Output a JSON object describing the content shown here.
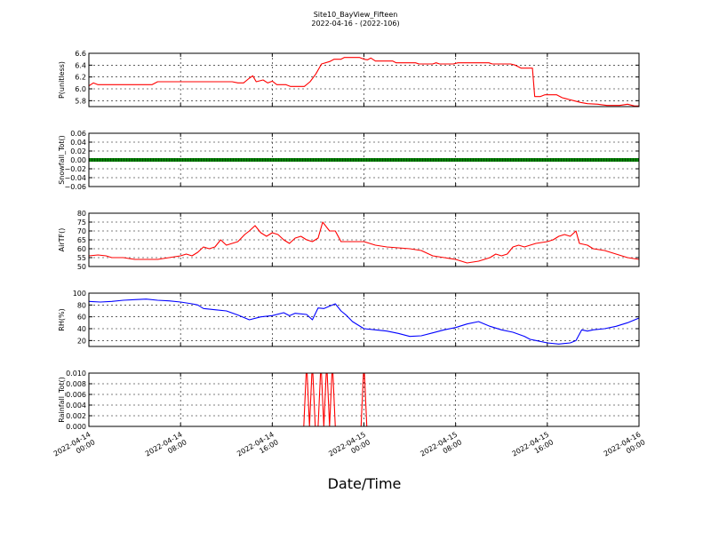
{
  "chart_data": {
    "type": "line",
    "title": "Site10_BayView_Fifteen",
    "subtitle": "2022-04-16 - (2022-106)",
    "xlabel": "Date/Time",
    "x_ticks": [
      {
        "line1": "2022-04-14",
        "line2": "00:00"
      },
      {
        "line1": "2022-04-14",
        "line2": "08:00"
      },
      {
        "line1": "2022-04-14",
        "line2": "16:00"
      },
      {
        "line1": "2022-04-15",
        "line2": "00:00"
      },
      {
        "line1": "2022-04-15",
        "line2": "08:00"
      },
      {
        "line1": "2022-04-15",
        "line2": "16:00"
      },
      {
        "line1": "2022-04-16",
        "line2": "00:00"
      }
    ],
    "x_range_hours": [
      0,
      48
    ],
    "grid": true,
    "panels": [
      {
        "ylabel": "P(unitless)",
        "color": "#ff0000",
        "ylim": [
          5.7,
          6.6
        ],
        "yticks": [
          "6.6",
          "6.4",
          "6.2",
          "6.0",
          "5.8"
        ],
        "ytick_values": [
          6.6,
          6.4,
          6.2,
          6.0,
          5.8
        ],
        "points": [
          [
            0,
            6.05
          ],
          [
            0.4,
            6.1
          ],
          [
            0.8,
            6.07
          ],
          [
            5.5,
            6.07
          ],
          [
            6.0,
            6.12
          ],
          [
            12.5,
            6.12
          ],
          [
            13.0,
            6.1
          ],
          [
            13.5,
            6.1
          ],
          [
            14.0,
            6.18
          ],
          [
            14.3,
            6.22
          ],
          [
            14.6,
            6.12
          ],
          [
            15.2,
            6.15
          ],
          [
            15.6,
            6.1
          ],
          [
            16.0,
            6.13
          ],
          [
            16.4,
            6.07
          ],
          [
            17.2,
            6.07
          ],
          [
            17.6,
            6.04
          ],
          [
            18.8,
            6.04
          ],
          [
            19.3,
            6.12
          ],
          [
            19.8,
            6.25
          ],
          [
            20.3,
            6.42
          ],
          [
            21.0,
            6.46
          ],
          [
            21.4,
            6.5
          ],
          [
            22.0,
            6.5
          ],
          [
            22.3,
            6.53
          ],
          [
            23.6,
            6.53
          ],
          [
            24.0,
            6.5
          ],
          [
            24.3,
            6.49
          ],
          [
            24.6,
            6.52
          ],
          [
            25.0,
            6.47
          ],
          [
            26.5,
            6.47
          ],
          [
            26.8,
            6.44
          ],
          [
            28.5,
            6.44
          ],
          [
            28.8,
            6.42
          ],
          [
            30.0,
            6.42
          ],
          [
            30.3,
            6.44
          ],
          [
            30.6,
            6.42
          ],
          [
            31.8,
            6.42
          ],
          [
            32.2,
            6.44
          ],
          [
            34.9,
            6.44
          ],
          [
            35.2,
            6.42
          ],
          [
            36.8,
            6.42
          ],
          [
            37.2,
            6.4
          ],
          [
            37.7,
            6.35
          ],
          [
            38.7,
            6.35
          ],
          [
            38.9,
            5.87
          ],
          [
            39.4,
            5.87
          ],
          [
            39.8,
            5.9
          ],
          [
            40.8,
            5.9
          ],
          [
            41.3,
            5.85
          ],
          [
            41.9,
            5.82
          ],
          [
            42.3,
            5.8
          ],
          [
            42.9,
            5.77
          ],
          [
            43.5,
            5.75
          ],
          [
            44.4,
            5.74
          ],
          [
            45.2,
            5.72
          ],
          [
            46.3,
            5.72
          ],
          [
            47.0,
            5.74
          ],
          [
            47.6,
            5.71
          ],
          [
            48.0,
            5.71
          ]
        ]
      },
      {
        "ylabel": "Snowfall_Tot()",
        "color": "#008000",
        "ylim": [
          -0.06,
          0.06
        ],
        "yticks": [
          "0.06",
          "0.04",
          "0.02",
          "0.00",
          "−0.02",
          "−0.04",
          "−0.06"
        ],
        "ytick_values": [
          0.06,
          0.04,
          0.02,
          0.0,
          -0.02,
          -0.04,
          -0.06
        ],
        "points": [
          [
            0,
            0
          ],
          [
            48,
            0
          ]
        ]
      },
      {
        "ylabel": "AirTF()",
        "color": "#ff0000",
        "ylim": [
          50,
          80
        ],
        "yticks": [
          "80",
          "75",
          "70",
          "65",
          "60",
          "55",
          "50"
        ],
        "ytick_values": [
          80,
          75,
          70,
          65,
          60,
          55,
          50
        ],
        "points": [
          [
            0,
            56
          ],
          [
            0.8,
            56.5
          ],
          [
            1.5,
            56
          ],
          [
            2,
            55
          ],
          [
            3,
            55
          ],
          [
            4,
            54
          ],
          [
            5,
            54
          ],
          [
            6,
            54
          ],
          [
            7,
            55
          ],
          [
            8,
            56
          ],
          [
            8.5,
            57
          ],
          [
            9,
            56
          ],
          [
            9.5,
            58
          ],
          [
            10,
            61
          ],
          [
            10.5,
            60
          ],
          [
            11,
            61
          ],
          [
            11.5,
            65
          ],
          [
            12,
            62
          ],
          [
            13,
            64
          ],
          [
            13.6,
            68
          ],
          [
            14,
            70
          ],
          [
            14.5,
            73
          ],
          [
            15,
            69
          ],
          [
            15.5,
            67
          ],
          [
            16,
            69
          ],
          [
            16.5,
            68
          ],
          [
            17,
            65
          ],
          [
            17.5,
            63
          ],
          [
            18,
            66
          ],
          [
            18.5,
            67
          ],
          [
            19,
            65
          ],
          [
            19.5,
            64
          ],
          [
            20,
            66
          ],
          [
            20.4,
            75
          ],
          [
            21,
            70
          ],
          [
            21.5,
            70
          ],
          [
            22,
            64
          ],
          [
            24,
            64
          ],
          [
            25,
            62
          ],
          [
            26,
            61
          ],
          [
            28,
            60
          ],
          [
            29,
            59
          ],
          [
            30,
            56
          ],
          [
            31,
            55
          ],
          [
            32,
            54
          ],
          [
            33,
            52
          ],
          [
            34,
            53
          ],
          [
            35,
            55
          ],
          [
            35.5,
            57
          ],
          [
            36,
            56
          ],
          [
            36.5,
            57
          ],
          [
            37,
            61
          ],
          [
            37.5,
            62
          ],
          [
            38,
            61
          ],
          [
            39,
            63
          ],
          [
            40,
            64
          ],
          [
            40.5,
            65
          ],
          [
            41,
            67
          ],
          [
            41.5,
            68
          ],
          [
            42,
            67
          ],
          [
            42.5,
            70
          ],
          [
            42.8,
            63
          ],
          [
            43.5,
            62
          ],
          [
            44,
            60
          ],
          [
            45,
            59
          ],
          [
            46,
            57
          ],
          [
            47,
            55
          ],
          [
            48,
            54
          ]
        ]
      },
      {
        "ylabel": "RH(%)",
        "color": "#0000ff",
        "ylim": [
          10,
          100
        ],
        "yticks": [
          "100",
          "80",
          "60",
          "40",
          "20"
        ],
        "ytick_values": [
          100,
          80,
          60,
          40,
          20
        ],
        "points": [
          [
            0,
            86
          ],
          [
            1,
            85
          ],
          [
            2,
            86
          ],
          [
            3,
            88
          ],
          [
            4,
            89
          ],
          [
            5,
            90
          ],
          [
            6,
            88
          ],
          [
            7,
            87
          ],
          [
            8,
            85
          ],
          [
            9,
            82
          ],
          [
            9.5,
            80
          ],
          [
            10,
            74
          ],
          [
            11,
            72
          ],
          [
            12,
            70
          ],
          [
            13,
            63
          ],
          [
            14,
            55
          ],
          [
            15,
            60
          ],
          [
            16,
            62
          ],
          [
            17,
            67
          ],
          [
            17.5,
            62
          ],
          [
            18,
            66
          ],
          [
            19,
            64
          ],
          [
            19.5,
            55
          ],
          [
            20,
            75
          ],
          [
            20.5,
            74
          ],
          [
            21,
            78
          ],
          [
            21.5,
            82
          ],
          [
            22,
            70
          ],
          [
            22.5,
            62
          ],
          [
            23,
            52
          ],
          [
            24,
            40
          ],
          [
            25,
            38
          ],
          [
            26,
            36
          ],
          [
            27,
            32
          ],
          [
            28,
            27
          ],
          [
            29,
            28
          ],
          [
            30,
            33
          ],
          [
            31,
            38
          ],
          [
            32,
            42
          ],
          [
            33,
            48
          ],
          [
            34,
            52
          ],
          [
            35,
            44
          ],
          [
            36,
            38
          ],
          [
            37,
            34
          ],
          [
            38,
            27
          ],
          [
            38.5,
            22
          ],
          [
            39,
            20
          ],
          [
            40,
            16
          ],
          [
            41,
            14
          ],
          [
            42,
            16
          ],
          [
            42.5,
            20
          ],
          [
            43,
            38
          ],
          [
            43.5,
            36
          ],
          [
            44,
            38
          ],
          [
            45,
            40
          ],
          [
            46,
            44
          ],
          [
            47,
            50
          ],
          [
            48,
            58
          ]
        ]
      },
      {
        "ylabel": "Rainfall_Tot()",
        "color": "#ff0000",
        "ylim": [
          0,
          0.01
        ],
        "yticks": [
          "0.010",
          "0.008",
          "0.006",
          "0.004",
          "0.002",
          "0.000"
        ],
        "ytick_values": [
          0.01,
          0.008,
          0.006,
          0.004,
          0.002,
          0.0
        ],
        "points": [
          [
            0,
            0
          ],
          [
            18.75,
            0
          ],
          [
            19.0,
            0.012
          ],
          [
            19.25,
            0
          ],
          [
            19.5,
            0.012
          ],
          [
            19.75,
            0
          ],
          [
            20.0,
            0
          ],
          [
            20.25,
            0.012
          ],
          [
            20.5,
            0
          ],
          [
            20.75,
            0.012
          ],
          [
            21.0,
            0
          ],
          [
            21.25,
            0.012
          ],
          [
            21.5,
            0
          ],
          [
            23.75,
            0
          ],
          [
            24.0,
            0.012
          ],
          [
            24.25,
            0
          ],
          [
            48,
            0
          ]
        ]
      }
    ]
  }
}
